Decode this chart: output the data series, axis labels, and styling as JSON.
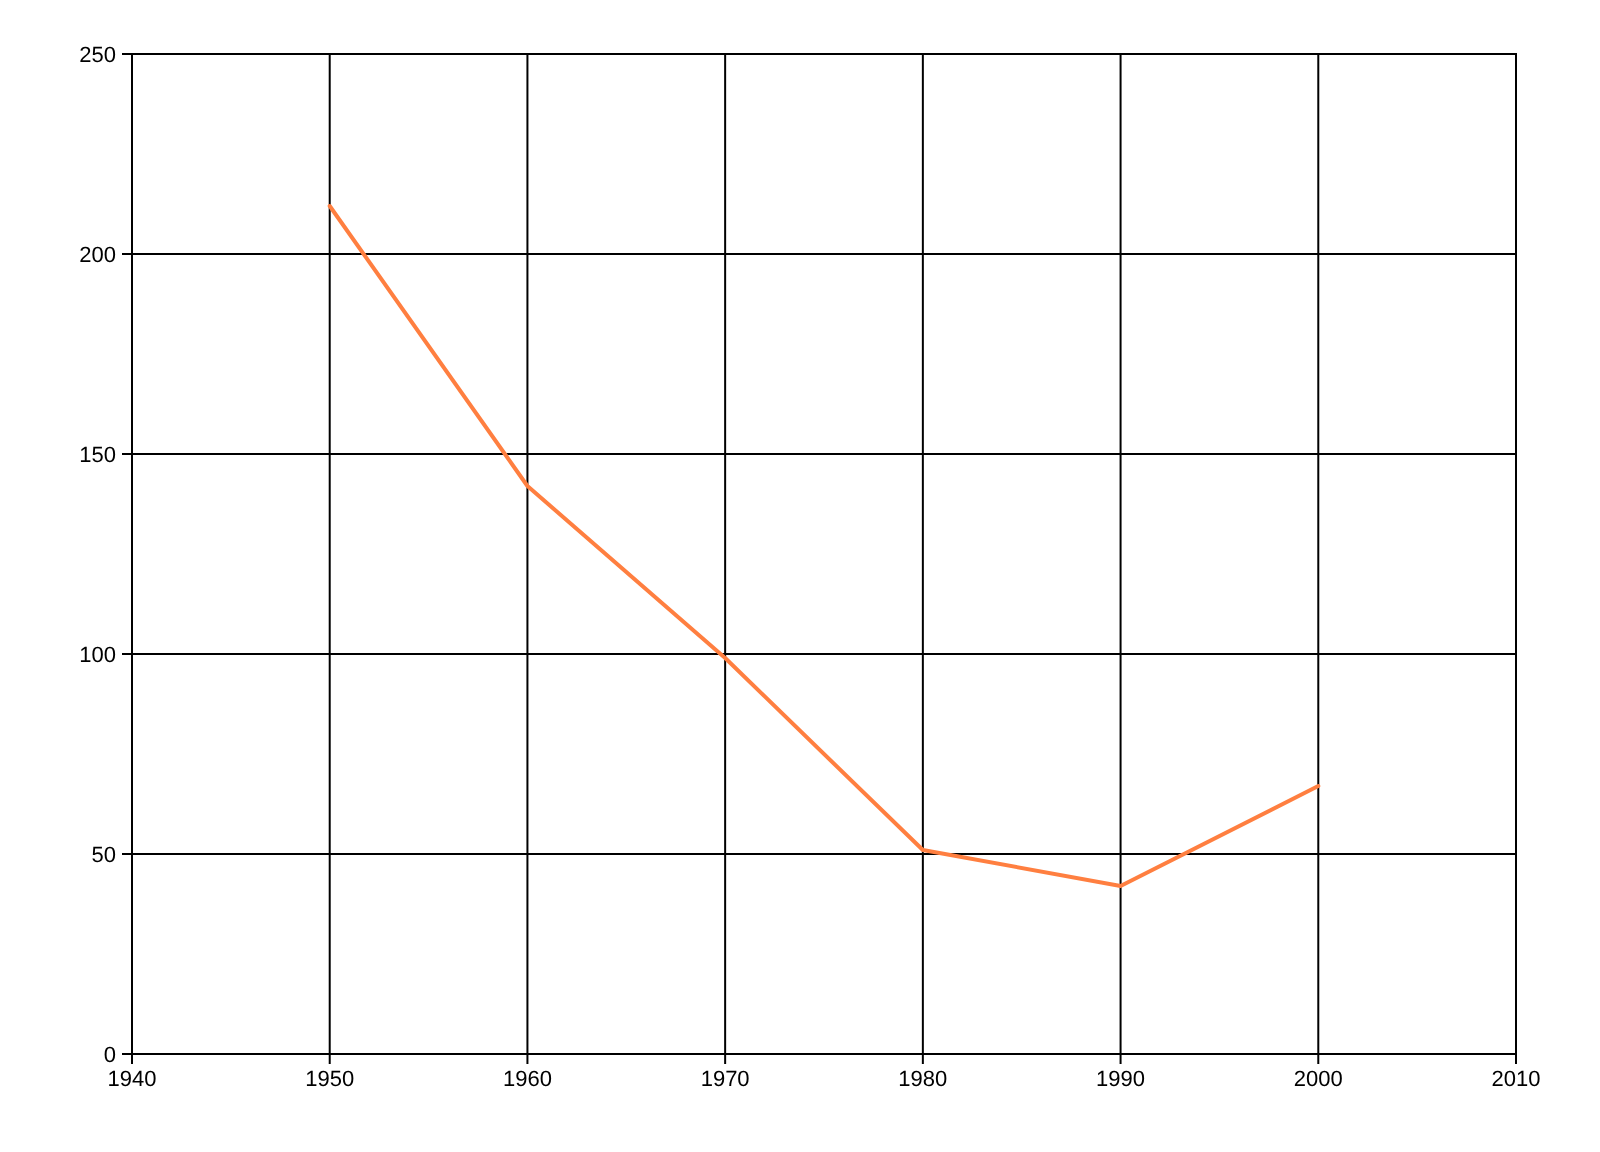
{
  "chart_data": {
    "type": "line",
    "x": [
      1950,
      1960,
      1970,
      1980,
      1990,
      2000
    ],
    "series": [
      {
        "color": "#ff7f40",
        "values": [
          212,
          142,
          99,
          51,
          42,
          67
        ]
      }
    ],
    "xlim": [
      1940,
      2010
    ],
    "xticks": [
      1940,
      1950,
      1960,
      1970,
      1980,
      1990,
      2000,
      2010
    ],
    "ylim": [
      0,
      250
    ],
    "yticks": [
      0,
      50,
      100,
      150,
      200,
      250
    ],
    "grid": true,
    "marker": "none",
    "line_style": "solid"
  }
}
